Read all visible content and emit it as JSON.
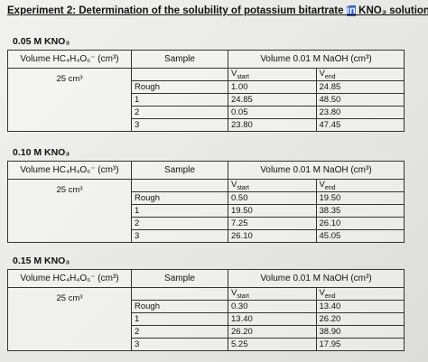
{
  "header": {
    "title_before": "Experiment 2: Determination of the solubility of potassium bitartrate ",
    "title_highlight": "in",
    "title_after": " KNO₃ solution"
  },
  "sections": [
    {
      "heading": "0.05 M KNO₃",
      "columns": [
        "Volume HC₄H₄O₆⁻ (cm³)",
        "Sample",
        "Volume 0.01 M NaOH (cm³)"
      ],
      "volume": "25 cm³",
      "v_start": {
        "symbol": "V",
        "sub": "start"
      },
      "v_end": {
        "symbol": "V",
        "sub": "end"
      },
      "rows": [
        [
          "Rough",
          "1.00",
          "24.85"
        ],
        [
          "1",
          "24.85",
          "48.50"
        ],
        [
          "2",
          "0.05",
          "23.80"
        ],
        [
          "3",
          "23.80",
          "47.45"
        ]
      ]
    },
    {
      "heading": "0.10 M KNO₃",
      "columns": [
        "Volume HC₄H₄O₆⁻ (cm³)",
        "Sample",
        "Volume 0.01 M NaOH (cm³)"
      ],
      "volume": "25 cm³",
      "v_start": {
        "symbol": "V",
        "sub": "start"
      },
      "v_end": {
        "symbol": "V",
        "sub": "end"
      },
      "rows": [
        [
          "Rough",
          "0.50",
          "19.50"
        ],
        [
          "1",
          "19.50",
          "38.35"
        ],
        [
          "2",
          "7.25",
          "26.10"
        ],
        [
          "3",
          "26.10",
          "45.05"
        ]
      ]
    },
    {
      "heading": "0.15 M KNO₃",
      "columns": [
        "Volume HC₄H₄O₆⁻ (cm³)",
        "Sample",
        "Volume 0.01 M NaOH (cm³)"
      ],
      "volume": "25 cm³",
      "v_start": {
        "symbol": "V",
        "sub": "start"
      },
      "v_end": {
        "symbol": "V",
        "sub": "end"
      },
      "rows": [
        [
          "Rough",
          "0.30",
          "13.40"
        ],
        [
          "1",
          "13.40",
          "26.20"
        ],
        [
          "2",
          "26.20",
          "38.90"
        ],
        [
          "3",
          "5.25",
          "17.95"
        ]
      ]
    }
  ]
}
